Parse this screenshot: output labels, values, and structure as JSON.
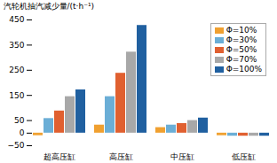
{
  "chart_data": {
    "type": "bar",
    "categories": [
      "超高压缸",
      "高压缸",
      "中压缸",
      "低压缸"
    ],
    "series": [
      {
        "name": "Φ=10%",
        "color": "#F0A030",
        "values": [
          -10,
          32,
          22,
          -10
        ]
      },
      {
        "name": "Φ=30%",
        "color": "#6BAED6",
        "values": [
          58,
          145,
          32,
          -12
        ]
      },
      {
        "name": "Φ=50%",
        "color": "#E06030",
        "values": [
          88,
          238,
          38,
          -12
        ]
      },
      {
        "name": "Φ=70%",
        "color": "#A8A8A8",
        "values": [
          145,
          322,
          50,
          -12
        ]
      },
      {
        "name": "Φ=100%",
        "color": "#2060A0",
        "values": [
          172,
          428,
          60,
          -12
        ]
      }
    ],
    "ylabel": "汽轮机抽汽减少量/(t·h⁻¹)",
    "ylim": [
      -50,
      450
    ],
    "yticks": [
      -50,
      0,
      50,
      150,
      250,
      350,
      450
    ],
    "legend": "upper right"
  }
}
